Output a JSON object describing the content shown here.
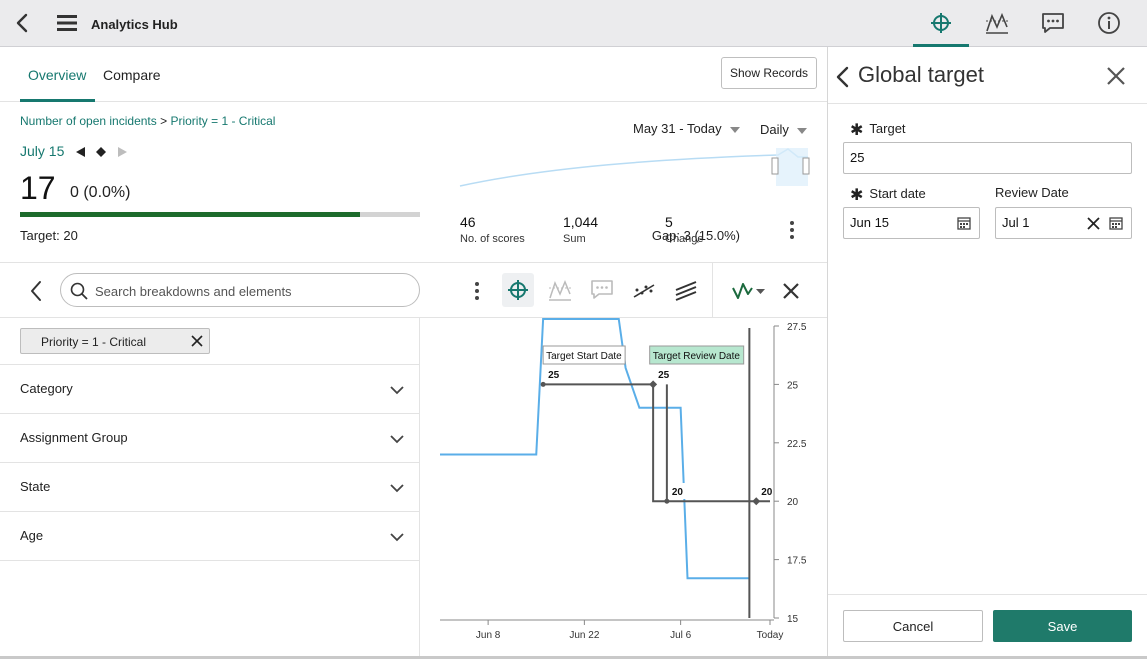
{
  "header": {
    "title": "Analytics Hub",
    "icons": [
      "back-arrow-icon",
      "hamburger-menu-icon",
      "crosshair-target-icon",
      "forecast-line-icon",
      "comment-icon",
      "info-icon"
    ]
  },
  "tabs": [
    {
      "label": "Overview",
      "active": true
    },
    {
      "label": "Compare",
      "active": false
    }
  ],
  "show_records_label": "Show Records",
  "breadcrumb": {
    "metric": "Number of open incidents",
    "separator": ">",
    "filter": "Priority = 1 - Critical"
  },
  "date_nav": {
    "date": "July 15"
  },
  "score": {
    "value": "17",
    "change": "0 (0.0%)",
    "progress_fraction": 0.85,
    "target": "Target: 20",
    "gap": "Gap: 3 (15.0%)"
  },
  "range": {
    "label": "May 31 - Today",
    "frequency": "Daily"
  },
  "stats": [
    {
      "value": "46",
      "label": "No. of scores"
    },
    {
      "value": "1,044",
      "label": "Sum"
    },
    {
      "value": "5",
      "label": "Change"
    }
  ],
  "search": {
    "placeholder": "Search breakdowns and elements"
  },
  "filter_chip": "Priority = 1 - Critical",
  "breakdowns": [
    "Category",
    "Assignment Group",
    "State",
    "Age"
  ],
  "chart_data": {
    "type": "line",
    "x_tick_labels": [
      "Jun 8",
      "Jun 22",
      "Jul 6",
      "Today"
    ],
    "y_ticks": [
      15,
      17.5,
      20,
      22.5,
      25,
      27.5
    ],
    "ylim": [
      15,
      27.5
    ],
    "series": [
      {
        "color": "#5aaee8",
        "points": [
          [
            0,
            22
          ],
          [
            14,
            22
          ],
          [
            15,
            27.8
          ],
          [
            26,
            27.8
          ],
          [
            27,
            25.7
          ],
          [
            29,
            24
          ],
          [
            35,
            24
          ],
          [
            36,
            16.7
          ],
          [
            45,
            16.7
          ]
        ]
      }
    ],
    "target_line": {
      "color": "#555555",
      "start_value": 25,
      "review_value": 20,
      "start_label": "Target Start Date",
      "review_label": "Target Review Date",
      "labels": [
        "25",
        "25",
        "20",
        "20"
      ]
    },
    "today_line_x": 45
  },
  "panel": {
    "title": "Global target",
    "target_label": "Target",
    "target_value": "25",
    "start_label": "Start date",
    "start_value": "Jun 15",
    "review_label": "Review Date",
    "review_value": "Jul 1",
    "cancel": "Cancel",
    "save": "Save"
  }
}
